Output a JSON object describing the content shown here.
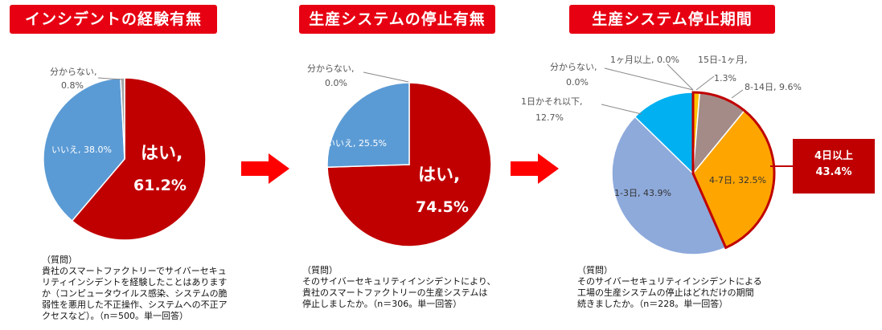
{
  "colors": {
    "red": "#c00000",
    "blue": "#5b9bd5",
    "gray": "#a5a5a5",
    "title_bg": "#e60012",
    "arrow": "#ff0000",
    "orange": "#ffa500",
    "mauve": "#a48b87",
    "light_blue": "#8eaadb",
    "cyan": "#00b0f0"
  },
  "arrow_icon": "right-arrow-icon",
  "chart_data": [
    {
      "type": "pie",
      "title": "インシデントの経験有無",
      "slices": [
        {
          "label": "はい",
          "value": 61.2,
          "text": "はい,",
          "pct": "61.2%",
          "color": "#c00000"
        },
        {
          "label": "いいえ",
          "value": 38.0,
          "text": "いいえ, 38.0%",
          "color": "#5b9bd5"
        },
        {
          "label": "分からない",
          "value": 0.8,
          "text1": "分からない,",
          "text2": "0.8%",
          "color": "#a5a5a5"
        }
      ],
      "question": "（質問）\n貴社のスマートファクトリーでサイバーセキュ\nリティインシデントを経験したことはあります\nか（コンピュータウイルス感染、システムの脆\n弱性を悪用した不正操作、システムへの不正ア\nクセスなど）。（n＝500。単一回答）"
    },
    {
      "type": "pie",
      "title": "生産システムの停止有無",
      "slices": [
        {
          "label": "はい",
          "value": 74.5,
          "text": "はい,",
          "pct": "74.5%",
          "color": "#c00000"
        },
        {
          "label": "いいえ",
          "value": 25.5,
          "text": "いいえ, 25.5%",
          "color": "#5b9bd5"
        },
        {
          "label": "分からない",
          "value": 0.0,
          "text1": "分からない,",
          "text2": "0.0%",
          "color": "#a5a5a5"
        }
      ],
      "question": "（質問）\nそのサイバーセキュリティインシデントにより、\n貴社のスマートファクトリーの生産システムは\n停止しましたか。（n＝306。単一回答）"
    },
    {
      "type": "pie",
      "title": "生産システム停止期間",
      "slices": [
        {
          "label": "1ヶ月以上",
          "value": 0.0,
          "text": "1ヶ月以上, 0.0%",
          "color": "#c00000"
        },
        {
          "label": "15日-1ヶ月",
          "value": 1.3,
          "text1": "15日-1ヶ月,",
          "text2": "1.3%",
          "color": "#ffc000"
        },
        {
          "label": "8-14日",
          "value": 9.6,
          "text": "8-14日, 9.6%",
          "color": "#a48b87"
        },
        {
          "label": "4-7日",
          "value": 32.5,
          "text": "4-7日, 32.5%",
          "color": "#ffa500"
        },
        {
          "label": "1-3日",
          "value": 43.9,
          "text": "1-3日, 43.9%",
          "color": "#8eaadb"
        },
        {
          "label": "1日かそれ以下",
          "value": 12.7,
          "text1": "1日かそれ以下,",
          "text2": "12.7%",
          "color": "#00b0f0"
        },
        {
          "label": "分からない",
          "value": 0.0,
          "text1": "分からない,",
          "text2": "0.0%",
          "color": "#a5a5a5"
        }
      ],
      "callout": {
        "line1": "4日以上",
        "line2": "43.4%"
      },
      "question": "（質問）\nそのサイバーセキュリティインシデントによる\n工場の生産システムの停止はどれだけの期間\n続きましたか。（n＝228。単一回答）"
    }
  ]
}
